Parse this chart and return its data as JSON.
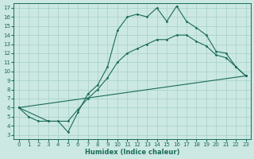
{
  "xlabel": "Humidex (Indice chaleur)",
  "bg_color": "#cce8e2",
  "grid_color": "#aad4cc",
  "line_color": "#1a6b5a",
  "xlim": [
    -0.5,
    23.5
  ],
  "ylim": [
    2.5,
    17.5
  ],
  "xticks": [
    0,
    1,
    2,
    3,
    4,
    5,
    6,
    7,
    8,
    9,
    10,
    11,
    12,
    13,
    14,
    15,
    16,
    17,
    18,
    19,
    20,
    21,
    22,
    23
  ],
  "yticks": [
    3,
    4,
    5,
    6,
    7,
    8,
    9,
    10,
    11,
    12,
    13,
    14,
    15,
    16,
    17
  ],
  "line1_x": [
    0,
    1,
    2,
    3,
    4,
    5,
    6,
    7,
    8,
    9,
    10,
    11,
    12,
    13,
    14,
    15,
    16,
    17,
    18,
    19,
    20,
    21,
    22,
    23
  ],
  "line1_y": [
    6.0,
    5.0,
    4.5,
    4.5,
    4.5,
    3.3,
    5.5,
    7.5,
    8.5,
    10.5,
    14.5,
    16.0,
    16.3,
    16.0,
    17.0,
    15.5,
    17.2,
    15.5,
    14.8,
    14.0,
    12.2,
    12.0,
    10.5,
    9.5
  ],
  "line2_x": [
    0,
    3,
    5,
    6,
    7,
    8,
    9,
    10,
    11,
    12,
    13,
    14,
    15,
    16,
    17,
    18,
    19,
    20,
    21,
    22,
    23
  ],
  "line2_y": [
    6.0,
    4.5,
    4.5,
    5.8,
    7.0,
    8.0,
    9.3,
    11.0,
    12.0,
    12.5,
    13.0,
    13.5,
    13.5,
    14.0,
    14.0,
    13.3,
    12.8,
    11.8,
    11.5,
    10.5,
    9.5
  ],
  "line3_x": [
    0,
    23
  ],
  "line3_y": [
    6.0,
    9.5
  ]
}
